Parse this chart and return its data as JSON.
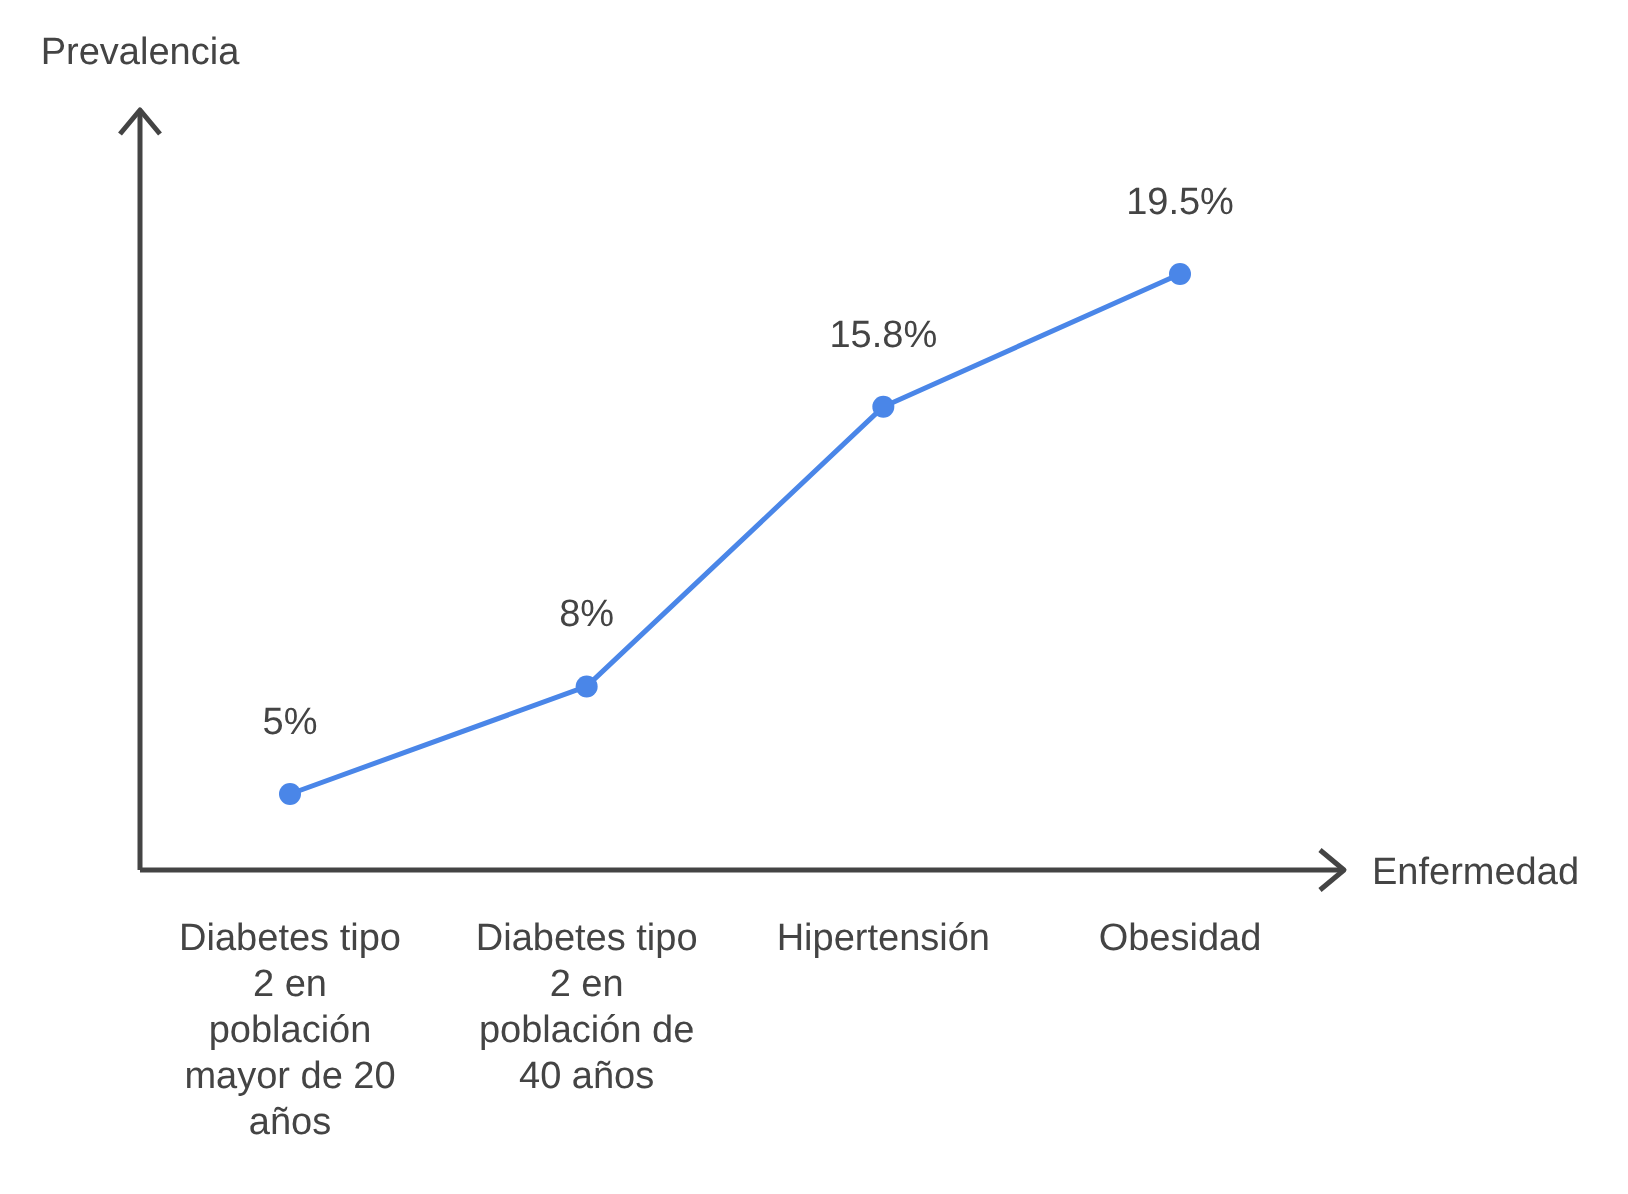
{
  "chart_data": {
    "type": "line",
    "xlabel": "Enfermedad",
    "annotations": [
      "Prevalencia"
    ],
    "categories": [
      "Diabetes tipo 2 en población mayor de 20 años",
      "Diabetes tipo 2 en población de 40 años",
      "Hipertensión",
      "Obesidad"
    ],
    "series": [
      {
        "color": "#4a86e8",
        "values": [
          5,
          8,
          15.8,
          19.5
        ],
        "value_labels": [
          "5%",
          "8%",
          "15.8%",
          "19.5%"
        ]
      }
    ],
    "marker": "circle"
  }
}
